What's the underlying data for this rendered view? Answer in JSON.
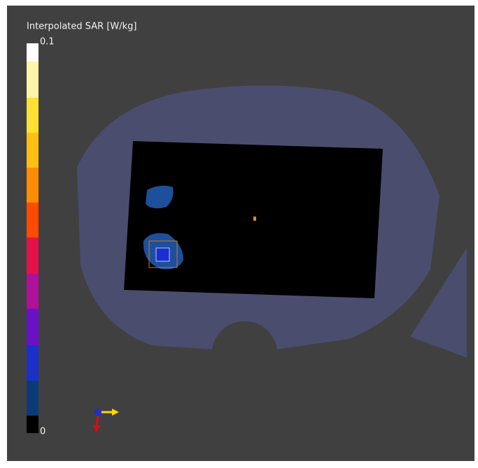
{
  "colorbar": {
    "title": "Interpolated SAR [W/kg]",
    "max_label": "0.1",
    "min_label": "0"
  }
}
